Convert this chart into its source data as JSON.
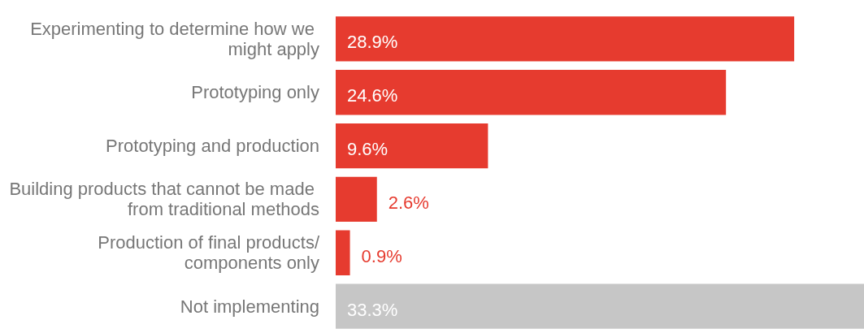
{
  "chart_data": {
    "type": "bar",
    "orientation": "horizontal",
    "categories": [
      "Experimenting to determine how we might apply",
      "Prototyping only",
      "Prototyping and production",
      "Building products that cannot be made from traditional methods",
      "Production of final products/components only",
      "Not implementing"
    ],
    "values": [
      28.9,
      24.6,
      9.6,
      2.6,
      0.9,
      33.3
    ],
    "value_labels": [
      "28.9%",
      "24.6%",
      "9.6%",
      "2.6%",
      "0.9%",
      "33.3%"
    ],
    "colors": [
      "#e63b2f",
      "#e63b2f",
      "#e63b2f",
      "#e63b2f",
      "#e63b2f",
      "#c6c6c6"
    ],
    "tick_labels": "y"
  }
}
